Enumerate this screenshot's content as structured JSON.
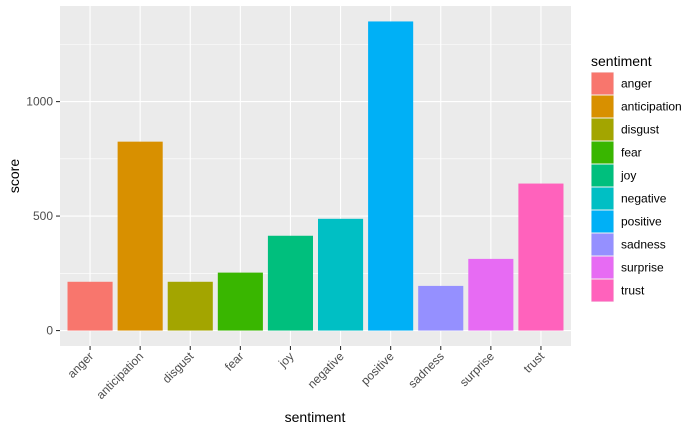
{
  "chart_data": {
    "type": "bar",
    "xlabel": "sentiment",
    "ylabel": "score",
    "categories": [
      "anger",
      "anticipation",
      "disgust",
      "fear",
      "joy",
      "negative",
      "positive",
      "sadness",
      "surprise",
      "trust"
    ],
    "values": [
      213,
      825,
      213,
      253,
      414,
      488,
      1350,
      195,
      313,
      642
    ],
    "colors": [
      "#F8766D",
      "#D89000",
      "#A3A500",
      "#39B600",
      "#00BF7D",
      "#00BFC4",
      "#00B0F6",
      "#9590FF",
      "#E76BF3",
      "#FF62BC"
    ],
    "yticks": [
      0,
      500,
      1000
    ],
    "ylim": [
      -67.5,
      1417.5
    ],
    "grid": true,
    "legend": {
      "title": "sentiment",
      "position": "right"
    }
  }
}
